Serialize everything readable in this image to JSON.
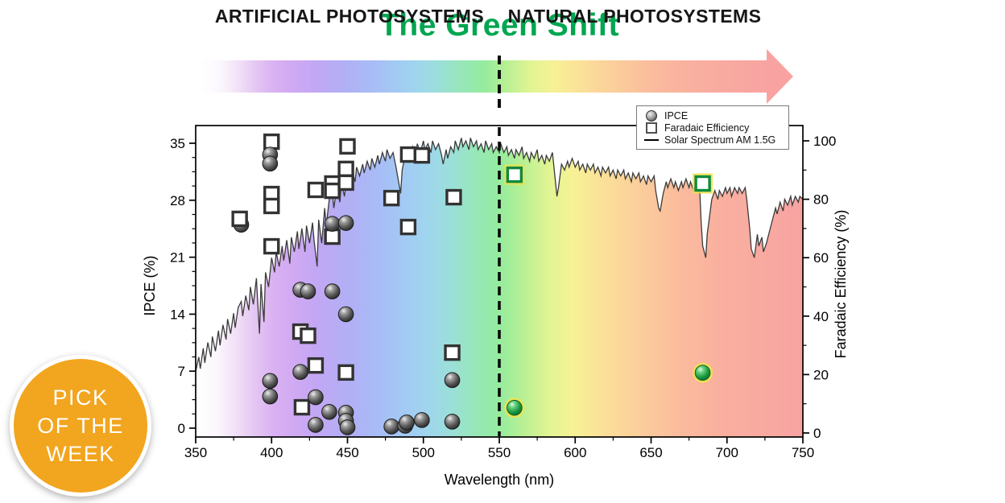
{
  "title": {
    "text": "The Green Shift",
    "color": "#00a650"
  },
  "banner": {
    "left_label": "ARTIFICIAL PHOTOSYSTEMS",
    "right_label": "NATURAL PHOTOSYSTEMS",
    "divider_wavelength": 550
  },
  "badge": {
    "lines": [
      "PICK",
      "OF THE",
      "WEEK"
    ],
    "bg_color": "#f2a51e",
    "text_color": "#ffffff"
  },
  "chart_data": {
    "type": "scatter",
    "xlabel": "Wavelength (nm)",
    "ylabel_left": "IPCE (%)",
    "ylabel_right": "Faradaic Efficiency (%)",
    "xlim": [
      350,
      750
    ],
    "x_ticks": [
      350,
      400,
      450,
      500,
      550,
      600,
      650,
      700,
      750
    ],
    "x_minor_step": 25,
    "left_ticks": [
      0,
      7,
      14,
      21,
      28,
      35
    ],
    "left_minor_step": 1.75,
    "right_ticks": [
      0,
      20,
      40,
      60,
      80,
      100
    ],
    "right_minor_step": 10,
    "divider_wavelength": 550,
    "legend": [
      {
        "label": "IPCE",
        "marker": "circle"
      },
      {
        "label": "Faradaic Efficiency",
        "marker": "square"
      },
      {
        "label": "Solar Spectrum AM 1.5G",
        "marker": "line"
      }
    ],
    "marker_colors": {
      "gray_stroke": "#1c1c1c",
      "square_stroke": "#333333",
      "green_stroke": "#0f8a3e",
      "green_glow": "#f0e24a"
    },
    "ipce_points": [
      {
        "x": 380,
        "y": 25.0
      },
      {
        "x": 399,
        "y": 33.6
      },
      {
        "x": 399,
        "y": 32.5
      },
      {
        "x": 399,
        "y": 5.8
      },
      {
        "x": 399,
        "y": 3.9
      },
      {
        "x": 419,
        "y": 17.0
      },
      {
        "x": 424,
        "y": 16.8
      },
      {
        "x": 419,
        "y": 6.9
      },
      {
        "x": 429,
        "y": 3.8
      },
      {
        "x": 429,
        "y": 0.4
      },
      {
        "x": 440,
        "y": 16.8
      },
      {
        "x": 440,
        "y": 25.1
      },
      {
        "x": 449,
        "y": 25.2
      },
      {
        "x": 449,
        "y": 14.0
      },
      {
        "x": 438,
        "y": 2.0
      },
      {
        "x": 449,
        "y": 1.9
      },
      {
        "x": 449,
        "y": 0.9
      },
      {
        "x": 450,
        "y": 0.1
      },
      {
        "x": 479,
        "y": 0.2
      },
      {
        "x": 488,
        "y": 0.3
      },
      {
        "x": 489,
        "y": 0.7
      },
      {
        "x": 499,
        "y": 1.0
      },
      {
        "x": 519,
        "y": 0.8
      },
      {
        "x": 519,
        "y": 5.9
      },
      {
        "x": 560,
        "y": 2.5,
        "green": true
      },
      {
        "x": 684,
        "y": 6.8,
        "green": true
      }
    ],
    "fe_points": [
      {
        "x": 379,
        "y": 73.3,
        "front": true
      },
      {
        "x": 400,
        "y": 99.7
      },
      {
        "x": 400,
        "y": 81.8
      },
      {
        "x": 400,
        "y": 77.7
      },
      {
        "x": 400,
        "y": 63.9
      },
      {
        "x": 419,
        "y": 34.7
      },
      {
        "x": 424,
        "y": 33.3
      },
      {
        "x": 429,
        "y": 23.1
      },
      {
        "x": 420,
        "y": 8.8
      },
      {
        "x": 429,
        "y": 83.2
      },
      {
        "x": 440,
        "y": 85.4
      },
      {
        "x": 440,
        "y": 82.9
      },
      {
        "x": 440,
        "y": 67.2
      },
      {
        "x": 450,
        "y": 98.1
      },
      {
        "x": 449,
        "y": 90.4
      },
      {
        "x": 449,
        "y": 85.7
      },
      {
        "x": 449,
        "y": 20.7
      },
      {
        "x": 479,
        "y": 80.4
      },
      {
        "x": 490,
        "y": 95.3
      },
      {
        "x": 499,
        "y": 95.0
      },
      {
        "x": 490,
        "y": 70.5
      },
      {
        "x": 520,
        "y": 80.7
      },
      {
        "x": 519,
        "y": 27.5
      },
      {
        "x": 560,
        "y": 88.4,
        "green": true
      },
      {
        "x": 684,
        "y": 85.4,
        "green": true
      }
    ],
    "spectrum_gradient": [
      {
        "pos": 0.0,
        "color": "#ffffff"
      },
      {
        "pos": 0.035,
        "color": "#fbf7fd"
      },
      {
        "pos": 0.07,
        "color": "#f0ddf6"
      },
      {
        "pos": 0.1,
        "color": "#e3c4f2"
      },
      {
        "pos": 0.13,
        "color": "#d9b0f2"
      },
      {
        "pos": 0.165,
        "color": "#cfa9f3"
      },
      {
        "pos": 0.2,
        "color": "#c2a7f4"
      },
      {
        "pos": 0.25,
        "color": "#b2aff5"
      },
      {
        "pos": 0.3,
        "color": "#a8bcf6"
      },
      {
        "pos": 0.34,
        "color": "#a3c9f4"
      },
      {
        "pos": 0.38,
        "color": "#9fd5ee"
      },
      {
        "pos": 0.42,
        "color": "#9bdfd9"
      },
      {
        "pos": 0.46,
        "color": "#97e7b8"
      },
      {
        "pos": 0.5,
        "color": "#95ec9e"
      },
      {
        "pos": 0.54,
        "color": "#b9f094"
      },
      {
        "pos": 0.58,
        "color": "#e0f493"
      },
      {
        "pos": 0.62,
        "color": "#f6f295"
      },
      {
        "pos": 0.655,
        "color": "#fae697"
      },
      {
        "pos": 0.7,
        "color": "#fbd79a"
      },
      {
        "pos": 0.75,
        "color": "#fbc89c"
      },
      {
        "pos": 0.8,
        "color": "#fabb9d"
      },
      {
        "pos": 0.87,
        "color": "#f9af9f"
      },
      {
        "pos": 1.0,
        "color": "#f8a3a2"
      }
    ],
    "solar_spectrum": [
      [
        350,
        21
      ],
      [
        352,
        26
      ],
      [
        353,
        22
      ],
      [
        355,
        29
      ],
      [
        356,
        24
      ],
      [
        358,
        31
      ],
      [
        360,
        26
      ],
      [
        361,
        33
      ],
      [
        363,
        28
      ],
      [
        365,
        35
      ],
      [
        366,
        30
      ],
      [
        368,
        37
      ],
      [
        370,
        32
      ],
      [
        371,
        39
      ],
      [
        373,
        34
      ],
      [
        375,
        41
      ],
      [
        376,
        36
      ],
      [
        378,
        43
      ],
      [
        380,
        45
      ],
      [
        381,
        40
      ],
      [
        383,
        47
      ],
      [
        385,
        42
      ],
      [
        386,
        50
      ],
      [
        388,
        44
      ],
      [
        390,
        53
      ],
      [
        392,
        34
      ],
      [
        393,
        51
      ],
      [
        395,
        38
      ],
      [
        396,
        55
      ],
      [
        398,
        50
      ],
      [
        400,
        60
      ],
      [
        402,
        55
      ],
      [
        403,
        62
      ],
      [
        405,
        57
      ],
      [
        407,
        64
      ],
      [
        408,
        59
      ],
      [
        410,
        66
      ],
      [
        412,
        58
      ],
      [
        413,
        67
      ],
      [
        415,
        62
      ],
      [
        417,
        69
      ],
      [
        418,
        63
      ],
      [
        420,
        70
      ],
      [
        422,
        62
      ],
      [
        423,
        71
      ],
      [
        425,
        65
      ],
      [
        427,
        72
      ],
      [
        428,
        66
      ],
      [
        430,
        57
      ],
      [
        431,
        73
      ],
      [
        433,
        65
      ],
      [
        435,
        77
      ],
      [
        436,
        71
      ],
      [
        438,
        80
      ],
      [
        440,
        83
      ],
      [
        441,
        77
      ],
      [
        443,
        84
      ],
      [
        445,
        79
      ],
      [
        446,
        86
      ],
      [
        448,
        81
      ],
      [
        450,
        89
      ],
      [
        451,
        85
      ],
      [
        453,
        90
      ],
      [
        455,
        86
      ],
      [
        456,
        91
      ],
      [
        458,
        88
      ],
      [
        460,
        92
      ],
      [
        461,
        89
      ],
      [
        463,
        93
      ],
      [
        465,
        90
      ],
      [
        466,
        94
      ],
      [
        468,
        91
      ],
      [
        470,
        95
      ],
      [
        471,
        92
      ],
      [
        473,
        96
      ],
      [
        475,
        93
      ],
      [
        476,
        97
      ],
      [
        478,
        94
      ],
      [
        480,
        96
      ],
      [
        482,
        91
      ],
      [
        483,
        88
      ],
      [
        485,
        82
      ],
      [
        486,
        90
      ],
      [
        488,
        95
      ],
      [
        490,
        97
      ],
      [
        491,
        94
      ],
      [
        493,
        98
      ],
      [
        495,
        95
      ],
      [
        496,
        99
      ],
      [
        498,
        96
      ],
      [
        500,
        100
      ],
      [
        501,
        97
      ],
      [
        503,
        99
      ],
      [
        505,
        96
      ],
      [
        506,
        100
      ],
      [
        508,
        97
      ],
      [
        510,
        99
      ],
      [
        512,
        95
      ],
      [
        513,
        92
      ],
      [
        515,
        97
      ],
      [
        516,
        94
      ],
      [
        518,
        98
      ],
      [
        520,
        96
      ],
      [
        521,
        100
      ],
      [
        523,
        97
      ],
      [
        525,
        101
      ],
      [
        526,
        98
      ],
      [
        528,
        100
      ],
      [
        530,
        97
      ],
      [
        531,
        101
      ],
      [
        533,
        98
      ],
      [
        535,
        100
      ],
      [
        536,
        97
      ],
      [
        538,
        99
      ],
      [
        540,
        96
      ],
      [
        541,
        100
      ],
      [
        543,
        97
      ],
      [
        545,
        99
      ],
      [
        546,
        96
      ],
      [
        548,
        98
      ],
      [
        550,
        96
      ],
      [
        551,
        99
      ],
      [
        553,
        96
      ],
      [
        555,
        98
      ],
      [
        556,
        95
      ],
      [
        558,
        97
      ],
      [
        560,
        94
      ],
      [
        561,
        97
      ],
      [
        563,
        95
      ],
      [
        565,
        98
      ],
      [
        566,
        94
      ],
      [
        568,
        96
      ],
      [
        570,
        93
      ],
      [
        571,
        96
      ],
      [
        573,
        94
      ],
      [
        575,
        97
      ],
      [
        576,
        93
      ],
      [
        578,
        95
      ],
      [
        580,
        92
      ],
      [
        581,
        95
      ],
      [
        583,
        93
      ],
      [
        585,
        96
      ],
      [
        586,
        91
      ],
      [
        588,
        81
      ],
      [
        589,
        84
      ],
      [
        591,
        92
      ],
      [
        593,
        90
      ],
      [
        595,
        93
      ],
      [
        596,
        91
      ],
      [
        598,
        94
      ],
      [
        600,
        91
      ],
      [
        602,
        93
      ],
      [
        603,
        90
      ],
      [
        605,
        92
      ],
      [
        607,
        89
      ],
      [
        608,
        92
      ],
      [
        610,
        90
      ],
      [
        612,
        92
      ],
      [
        613,
        89
      ],
      [
        615,
        91
      ],
      [
        617,
        88
      ],
      [
        618,
        91
      ],
      [
        620,
        89
      ],
      [
        622,
        91
      ],
      [
        623,
        88
      ],
      [
        625,
        90
      ],
      [
        627,
        87
      ],
      [
        628,
        90
      ],
      [
        630,
        88
      ],
      [
        632,
        90
      ],
      [
        633,
        87
      ],
      [
        635,
        89
      ],
      [
        637,
        86
      ],
      [
        638,
        89
      ],
      [
        640,
        87
      ],
      [
        642,
        89
      ],
      [
        643,
        86
      ],
      [
        645,
        88
      ],
      [
        647,
        85
      ],
      [
        648,
        88
      ],
      [
        650,
        86
      ],
      [
        652,
        88
      ],
      [
        653,
        83
      ],
      [
        655,
        77
      ],
      [
        656,
        76
      ],
      [
        658,
        82
      ],
      [
        660,
        86
      ],
      [
        661,
        84
      ],
      [
        663,
        87
      ],
      [
        665,
        84
      ],
      [
        666,
        86
      ],
      [
        668,
        83
      ],
      [
        670,
        86
      ],
      [
        671,
        84
      ],
      [
        673,
        87
      ],
      [
        675,
        84
      ],
      [
        676,
        86
      ],
      [
        678,
        83
      ],
      [
        680,
        86
      ],
      [
        682,
        84
      ],
      [
        683,
        72
      ],
      [
        684,
        64
      ],
      [
        686,
        60
      ],
      [
        687,
        68
      ],
      [
        689,
        76
      ],
      [
        690,
        80
      ],
      [
        692,
        83
      ],
      [
        694,
        80
      ],
      [
        695,
        83
      ],
      [
        697,
        81
      ],
      [
        699,
        84
      ],
      [
        700,
        82
      ],
      [
        702,
        84
      ],
      [
        703,
        81
      ],
      [
        705,
        84
      ],
      [
        707,
        82
      ],
      [
        708,
        84
      ],
      [
        710,
        82
      ],
      [
        712,
        84
      ],
      [
        713,
        80
      ],
      [
        715,
        70
      ],
      [
        716,
        63
      ],
      [
        718,
        60
      ],
      [
        720,
        68
      ],
      [
        721,
        64
      ],
      [
        723,
        67
      ],
      [
        724,
        62
      ],
      [
        726,
        65
      ],
      [
        728,
        69
      ],
      [
        730,
        73
      ],
      [
        732,
        77
      ],
      [
        733,
        75
      ],
      [
        735,
        79
      ],
      [
        737,
        76
      ],
      [
        738,
        80
      ],
      [
        740,
        78
      ],
      [
        742,
        81
      ],
      [
        743,
        78
      ],
      [
        745,
        81
      ],
      [
        747,
        79
      ],
      [
        748,
        81
      ],
      [
        750,
        80
      ]
    ]
  }
}
